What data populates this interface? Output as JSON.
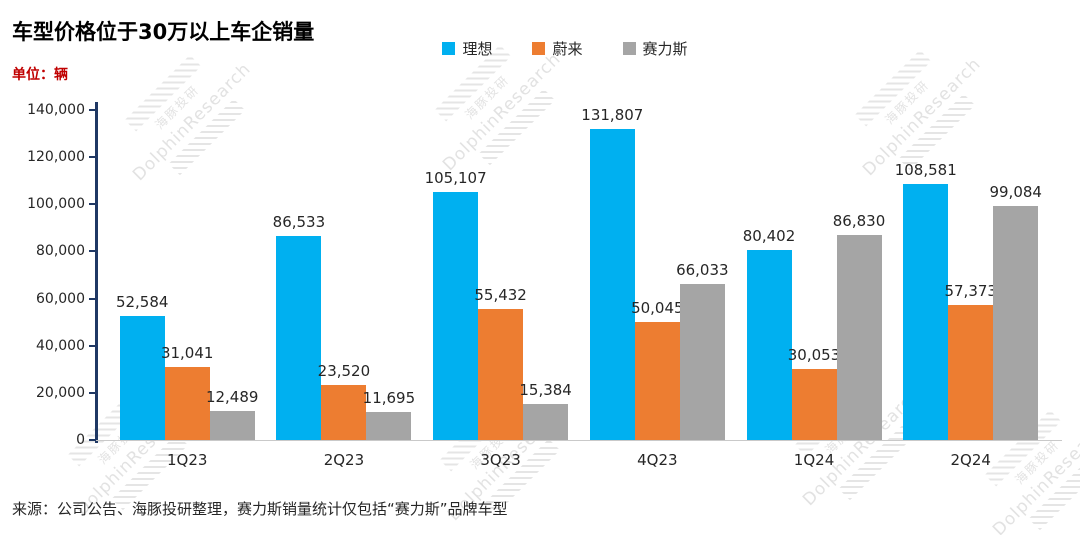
{
  "title": "车型价格位于30万以上车企销量",
  "unit_label": "单位：辆",
  "source": "来源：公司公告、海豚投研整理，赛力斯销量统计仅包括“赛力斯”品牌车型",
  "watermark": {
    "cn": "海豚投研",
    "en": "DolphinResearch"
  },
  "chart_data": {
    "type": "bar",
    "title": "车型价格位于30万以上车企销量",
    "ylabel": "单位：辆",
    "categories": [
      "1Q23",
      "2Q23",
      "3Q23",
      "4Q23",
      "1Q24",
      "2Q24"
    ],
    "series": [
      {
        "name": "理想",
        "color": "#00B0F0",
        "values": [
          52584,
          86533,
          105107,
          131807,
          80402,
          108581
        ]
      },
      {
        "name": "蔚来",
        "color": "#ED7D31",
        "values": [
          31041,
          23520,
          55432,
          50045,
          30053,
          57373
        ]
      },
      {
        "name": "赛力斯",
        "color": "#A5A5A5",
        "values": [
          12489,
          11695,
          15384,
          66033,
          86830,
          99084
        ]
      }
    ],
    "ylim": [
      0,
      140000
    ],
    "yticks": [
      0,
      20000,
      40000,
      60000,
      80000,
      100000,
      120000,
      140000
    ],
    "ytick_labels": [
      "0",
      "20,000",
      "40,000",
      "60,000",
      "80,000",
      "100,000",
      "120,000",
      "140,000"
    ],
    "legend_position": "top",
    "grid": false
  }
}
